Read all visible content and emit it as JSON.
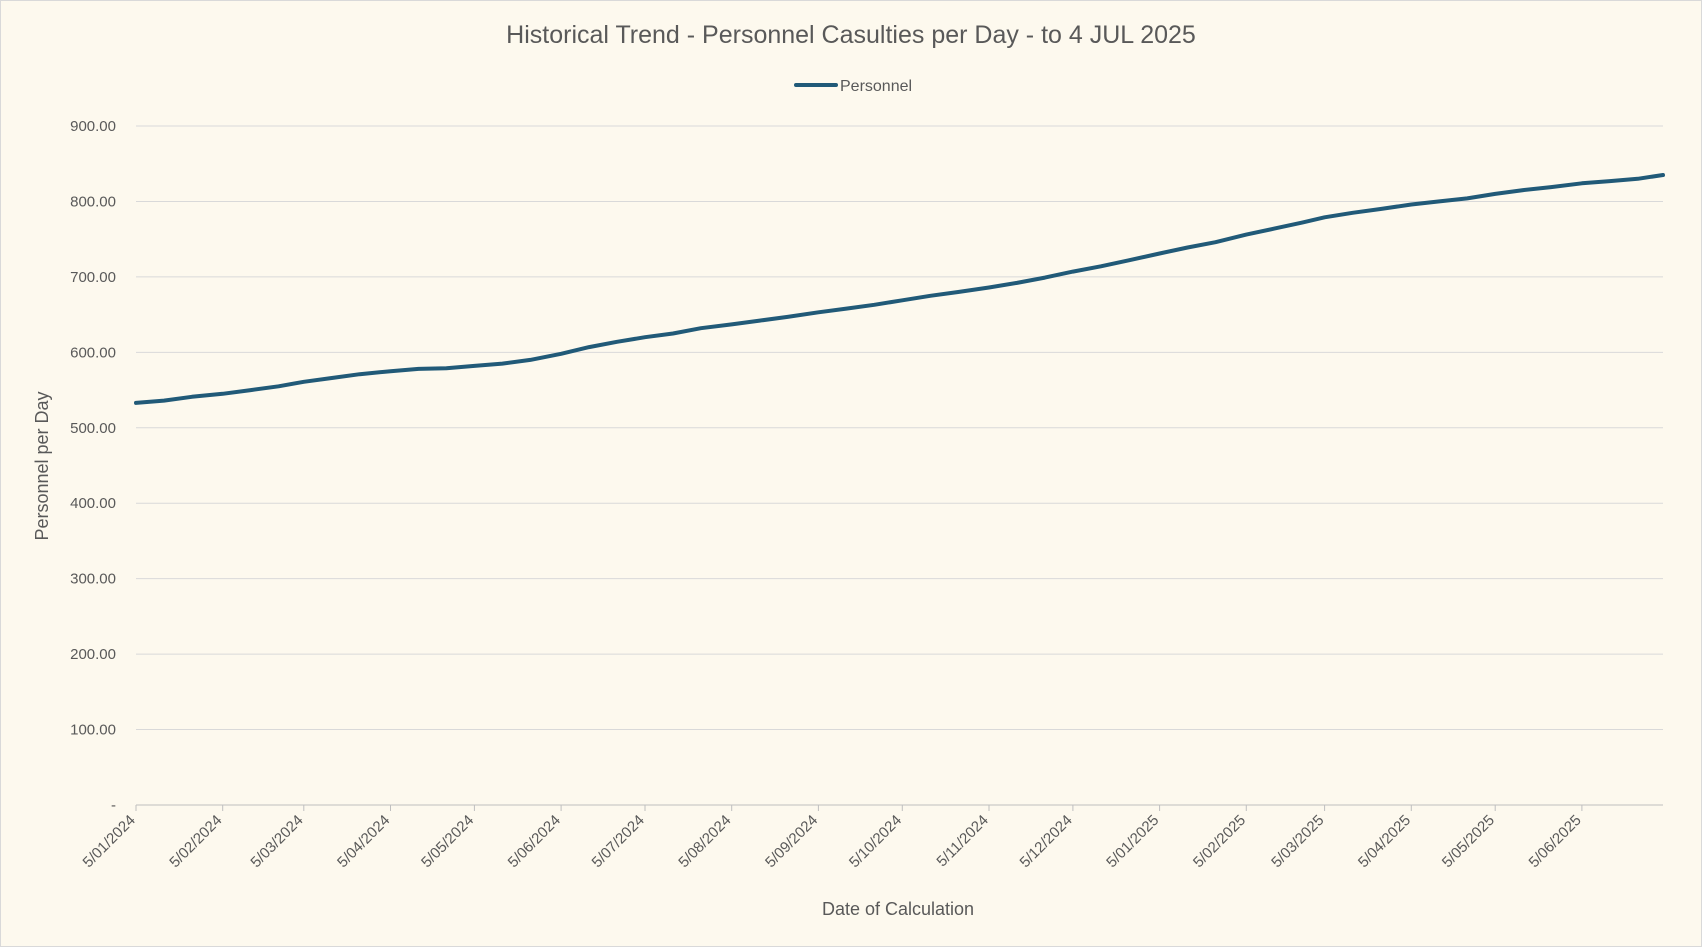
{
  "chart_data": {
    "type": "line",
    "title": "Historical Trend - Personnel Casulties per Day - to 4 JUL 2025",
    "xlabel": "Date of Calculation",
    "ylabel": "Personnel per Day",
    "legend_position": "top",
    "grid": true,
    "ylim": [
      0,
      900
    ],
    "y_ticks": [
      {
        "value": 0,
        "label": "-"
      },
      {
        "value": 100,
        "label": "100.00"
      },
      {
        "value": 200,
        "label": "200.00"
      },
      {
        "value": 300,
        "label": "300.00"
      },
      {
        "value": 400,
        "label": "400.00"
      },
      {
        "value": 500,
        "label": "500.00"
      },
      {
        "value": 600,
        "label": "600.00"
      },
      {
        "value": 700,
        "label": "700.00"
      },
      {
        "value": 800,
        "label": "800.00"
      },
      {
        "value": 900,
        "label": "900.00"
      }
    ],
    "xlim": [
      "2024-01-05",
      "2025-07-04"
    ],
    "x_ticks": [
      {
        "date": "2024-01-05",
        "label": "5/01/2024"
      },
      {
        "date": "2024-02-05",
        "label": "5/02/2024"
      },
      {
        "date": "2024-03-05",
        "label": "5/03/2024"
      },
      {
        "date": "2024-04-05",
        "label": "5/04/2024"
      },
      {
        "date": "2024-05-05",
        "label": "5/05/2024"
      },
      {
        "date": "2024-06-05",
        "label": "5/06/2024"
      },
      {
        "date": "2024-07-05",
        "label": "5/07/2024"
      },
      {
        "date": "2024-08-05",
        "label": "5/08/2024"
      },
      {
        "date": "2024-09-05",
        "label": "5/09/2024"
      },
      {
        "date": "2024-10-05",
        "label": "5/10/2024"
      },
      {
        "date": "2024-11-05",
        "label": "5/11/2024"
      },
      {
        "date": "2024-12-05",
        "label": "5/12/2024"
      },
      {
        "date": "2025-01-05",
        "label": "5/01/2025"
      },
      {
        "date": "2025-02-05",
        "label": "5/02/2025"
      },
      {
        "date": "2025-03-05",
        "label": "5/03/2025"
      },
      {
        "date": "2025-04-05",
        "label": "5/04/2025"
      },
      {
        "date": "2025-05-05",
        "label": "5/05/2025"
      },
      {
        "date": "2025-06-05",
        "label": "5/06/2025"
      }
    ],
    "series": [
      {
        "name": "Personnel",
        "color": "#215a78",
        "points": [
          {
            "x": "2024-01-05",
            "y": 533
          },
          {
            "x": "2024-01-15",
            "y": 536
          },
          {
            "x": "2024-01-25",
            "y": 541
          },
          {
            "x": "2024-02-05",
            "y": 545
          },
          {
            "x": "2024-02-15",
            "y": 550
          },
          {
            "x": "2024-02-25",
            "y": 555
          },
          {
            "x": "2024-03-05",
            "y": 561
          },
          {
            "x": "2024-03-15",
            "y": 566
          },
          {
            "x": "2024-03-25",
            "y": 571
          },
          {
            "x": "2024-04-05",
            "y": 575
          },
          {
            "x": "2024-04-15",
            "y": 578
          },
          {
            "x": "2024-04-25",
            "y": 579
          },
          {
            "x": "2024-05-05",
            "y": 582
          },
          {
            "x": "2024-05-15",
            "y": 585
          },
          {
            "x": "2024-05-25",
            "y": 590
          },
          {
            "x": "2024-06-05",
            "y": 598
          },
          {
            "x": "2024-06-15",
            "y": 607
          },
          {
            "x": "2024-06-25",
            "y": 614
          },
          {
            "x": "2024-07-05",
            "y": 620
          },
          {
            "x": "2024-07-15",
            "y": 625
          },
          {
            "x": "2024-07-25",
            "y": 632
          },
          {
            "x": "2024-08-05",
            "y": 637
          },
          {
            "x": "2024-08-15",
            "y": 642
          },
          {
            "x": "2024-08-25",
            "y": 647
          },
          {
            "x": "2024-09-05",
            "y": 653
          },
          {
            "x": "2024-09-15",
            "y": 658
          },
          {
            "x": "2024-09-25",
            "y": 663
          },
          {
            "x": "2024-10-05",
            "y": 669
          },
          {
            "x": "2024-10-15",
            "y": 675
          },
          {
            "x": "2024-10-25",
            "y": 680
          },
          {
            "x": "2024-11-05",
            "y": 686
          },
          {
            "x": "2024-11-15",
            "y": 692
          },
          {
            "x": "2024-11-25",
            "y": 699
          },
          {
            "x": "2024-12-05",
            "y": 707
          },
          {
            "x": "2024-12-15",
            "y": 714
          },
          {
            "x": "2024-12-25",
            "y": 722
          },
          {
            "x": "2025-01-05",
            "y": 731
          },
          {
            "x": "2025-01-15",
            "y": 739
          },
          {
            "x": "2025-01-25",
            "y": 746
          },
          {
            "x": "2025-02-05",
            "y": 756
          },
          {
            "x": "2025-02-15",
            "y": 764
          },
          {
            "x": "2025-02-25",
            "y": 772
          },
          {
            "x": "2025-03-05",
            "y": 779
          },
          {
            "x": "2025-03-15",
            "y": 785
          },
          {
            "x": "2025-03-25",
            "y": 790
          },
          {
            "x": "2025-04-05",
            "y": 796
          },
          {
            "x": "2025-04-15",
            "y": 800
          },
          {
            "x": "2025-04-25",
            "y": 804
          },
          {
            "x": "2025-05-05",
            "y": 810
          },
          {
            "x": "2025-05-15",
            "y": 815
          },
          {
            "x": "2025-05-25",
            "y": 819
          },
          {
            "x": "2025-06-05",
            "y": 824
          },
          {
            "x": "2025-06-15",
            "y": 827
          },
          {
            "x": "2025-06-25",
            "y": 830
          },
          {
            "x": "2025-07-04",
            "y": 835
          }
        ]
      }
    ]
  }
}
